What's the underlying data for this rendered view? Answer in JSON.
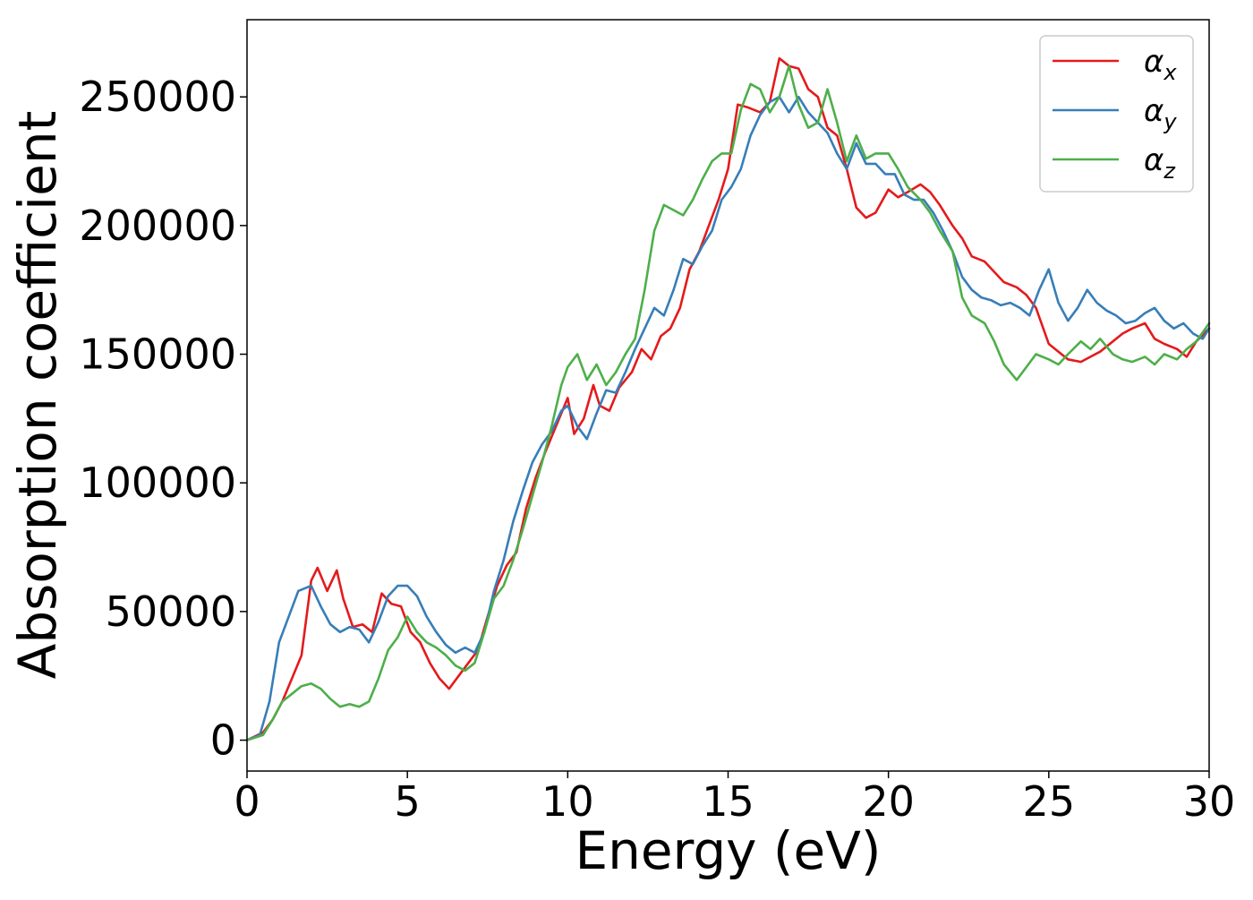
{
  "chart_data": {
    "type": "line",
    "title": "",
    "xlabel": "Energy (eV)",
    "ylabel": "Absorption coefficient",
    "xlim": [
      0,
      30
    ],
    "ylim": [
      -12000,
      280000
    ],
    "xticks": [
      0,
      5,
      10,
      15,
      20,
      25,
      30
    ],
    "xtick_labels": [
      "0",
      "5",
      "10",
      "15",
      "20",
      "25",
      "30"
    ],
    "yticks": [
      0,
      50000,
      100000,
      150000,
      200000,
      250000
    ],
    "ytick_labels": [
      "0",
      "50000",
      "100000",
      "150000",
      "200000",
      "250000"
    ],
    "grid": false,
    "legend": {
      "position": "top-right"
    },
    "series": [
      {
        "name": "α_x",
        "label_base": "α",
        "label_sub": "x",
        "color": "#e41a1c",
        "x": [
          0,
          0.5,
          0.8,
          1.1,
          1.4,
          1.7,
          2.0,
          2.2,
          2.5,
          2.8,
          3.0,
          3.3,
          3.6,
          3.9,
          4.2,
          4.5,
          4.8,
          5.1,
          5.4,
          5.7,
          6.0,
          6.3,
          6.6,
          6.9,
          7.2,
          7.5,
          7.8,
          8.1,
          8.4,
          8.7,
          9.0,
          9.3,
          9.6,
          10.0,
          10.2,
          10.5,
          10.8,
          11.0,
          11.3,
          11.6,
          12.0,
          12.3,
          12.6,
          12.9,
          13.2,
          13.5,
          13.8,
          14.1,
          14.4,
          14.7,
          15.0,
          15.3,
          15.6,
          16.0,
          16.3,
          16.6,
          16.9,
          17.2,
          17.5,
          17.8,
          18.1,
          18.4,
          18.7,
          19.0,
          19.3,
          19.6,
          20.0,
          20.3,
          20.6,
          21.0,
          21.3,
          21.6,
          22.0,
          22.3,
          22.6,
          23.0,
          23.3,
          23.6,
          24.0,
          24.3,
          24.6,
          25.0,
          25.3,
          25.6,
          26.0,
          26.3,
          26.6,
          27.0,
          27.3,
          27.6,
          28.0,
          28.3,
          28.6,
          29.0,
          29.3,
          29.6,
          30.0
        ],
        "y": [
          0,
          3000,
          8000,
          15000,
          24000,
          33000,
          62000,
          67000,
          58000,
          66000,
          55000,
          44000,
          45000,
          42000,
          57000,
          53000,
          52000,
          42000,
          38000,
          30000,
          24000,
          20000,
          25000,
          30000,
          35000,
          48000,
          60000,
          68000,
          73000,
          90000,
          102000,
          112000,
          121000,
          133000,
          119000,
          125000,
          138000,
          130000,
          128000,
          137000,
          143000,
          152000,
          148000,
          157000,
          160000,
          168000,
          183000,
          190000,
          200000,
          210000,
          222000,
          247000,
          246000,
          244000,
          248000,
          265000,
          262000,
          261000,
          253000,
          250000,
          238000,
          235000,
          222000,
          207000,
          203000,
          205000,
          214000,
          211000,
          213000,
          216000,
          213000,
          208000,
          200000,
          195000,
          188000,
          186000,
          182000,
          178000,
          176000,
          173000,
          168000,
          154000,
          151000,
          148000,
          147000,
          149000,
          151000,
          155000,
          158000,
          160000,
          162000,
          156000,
          154000,
          152000,
          149000,
          155000,
          160000
        ]
      },
      {
        "name": "α_y",
        "label_base": "α",
        "label_sub": "y",
        "color": "#377eb8",
        "x": [
          0,
          0.4,
          0.7,
          1.0,
          1.3,
          1.6,
          2.0,
          2.3,
          2.6,
          2.9,
          3.2,
          3.5,
          3.8,
          4.1,
          4.4,
          4.7,
          5.0,
          5.3,
          5.6,
          5.9,
          6.2,
          6.5,
          6.8,
          7.1,
          7.4,
          7.7,
          8.0,
          8.3,
          8.6,
          8.9,
          9.2,
          9.5,
          9.8,
          10.0,
          10.3,
          10.6,
          10.9,
          11.2,
          11.5,
          11.8,
          12.1,
          12.4,
          12.7,
          13.0,
          13.3,
          13.6,
          13.9,
          14.2,
          14.5,
          14.8,
          15.1,
          15.4,
          15.7,
          16.0,
          16.3,
          16.6,
          16.9,
          17.2,
          17.5,
          17.8,
          18.1,
          18.4,
          18.7,
          19.0,
          19.3,
          19.6,
          19.9,
          20.2,
          20.5,
          20.8,
          21.1,
          21.4,
          21.7,
          22.0,
          22.3,
          22.6,
          22.9,
          23.2,
          23.5,
          23.8,
          24.1,
          24.4,
          24.7,
          25.0,
          25.3,
          25.6,
          25.9,
          26.2,
          26.5,
          26.8,
          27.1,
          27.4,
          27.7,
          28.0,
          28.3,
          28.6,
          28.9,
          29.2,
          29.5,
          29.8,
          30.0
        ],
        "y": [
          0,
          2000,
          15000,
          38000,
          48000,
          58000,
          60000,
          52000,
          45000,
          42000,
          44000,
          43000,
          38000,
          46000,
          56000,
          60000,
          60000,
          56000,
          48000,
          42000,
          37000,
          34000,
          36000,
          34000,
          42000,
          58000,
          70000,
          85000,
          97000,
          108000,
          115000,
          120000,
          128000,
          130000,
          122000,
          117000,
          127000,
          136000,
          135000,
          143000,
          152000,
          160000,
          168000,
          165000,
          175000,
          187000,
          185000,
          192000,
          198000,
          210000,
          215000,
          222000,
          235000,
          243000,
          248000,
          250000,
          244000,
          250000,
          244000,
          240000,
          236000,
          228000,
          222000,
          232000,
          224000,
          224000,
          220000,
          220000,
          212000,
          210000,
          210000,
          205000,
          198000,
          190000,
          180000,
          175000,
          172000,
          171000,
          169000,
          170000,
          168000,
          165000,
          175000,
          183000,
          170000,
          163000,
          168000,
          175000,
          170000,
          167000,
          165000,
          162000,
          163000,
          166000,
          168000,
          163000,
          160000,
          162000,
          158000,
          156000,
          160000
        ]
      },
      {
        "name": "α_z",
        "label_base": "α",
        "label_sub": "z",
        "color": "#4daf4a",
        "x": [
          0,
          0.5,
          0.8,
          1.1,
          1.4,
          1.7,
          2.0,
          2.3,
          2.6,
          2.9,
          3.2,
          3.5,
          3.8,
          4.1,
          4.4,
          4.7,
          5.0,
          5.3,
          5.6,
          5.9,
          6.2,
          6.5,
          6.8,
          7.1,
          7.4,
          7.7,
          8.0,
          8.3,
          8.6,
          8.9,
          9.2,
          9.5,
          9.8,
          10.0,
          10.3,
          10.6,
          10.9,
          11.2,
          11.5,
          11.8,
          12.1,
          12.4,
          12.7,
          13.0,
          13.3,
          13.6,
          13.9,
          14.2,
          14.5,
          14.8,
          15.1,
          15.4,
          15.7,
          16.0,
          16.3,
          16.6,
          16.9,
          17.2,
          17.5,
          17.8,
          18.1,
          18.4,
          18.7,
          19.0,
          19.3,
          19.6,
          20.0,
          20.3,
          20.6,
          21.0,
          21.3,
          21.6,
          22.0,
          22.3,
          22.6,
          23.0,
          23.3,
          23.6,
          24.0,
          24.3,
          24.6,
          25.0,
          25.3,
          25.6,
          26.0,
          26.3,
          26.6,
          27.0,
          27.3,
          27.6,
          28.0,
          28.3,
          28.6,
          29.0,
          29.3,
          29.6,
          30.0
        ],
        "y": [
          0,
          2000,
          8000,
          15000,
          18000,
          21000,
          22000,
          20000,
          16000,
          13000,
          14000,
          13000,
          15000,
          24000,
          35000,
          40000,
          48000,
          42000,
          38000,
          36000,
          33000,
          29000,
          27000,
          30000,
          42000,
          55000,
          60000,
          70000,
          82000,
          95000,
          108000,
          122000,
          138000,
          145000,
          150000,
          140000,
          146000,
          138000,
          143000,
          150000,
          156000,
          175000,
          198000,
          208000,
          206000,
          204000,
          210000,
          218000,
          225000,
          228000,
          228000,
          245000,
          255000,
          253000,
          244000,
          250000,
          262000,
          247000,
          238000,
          240000,
          253000,
          240000,
          225000,
          235000,
          226000,
          228000,
          228000,
          222000,
          215000,
          210000,
          205000,
          198000,
          190000,
          172000,
          165000,
          162000,
          155000,
          146000,
          140000,
          145000,
          150000,
          148000,
          146000,
          150000,
          155000,
          152000,
          156000,
          150000,
          148000,
          147000,
          149000,
          146000,
          150000,
          148000,
          152000,
          155000,
          162000
        ]
      }
    ]
  }
}
